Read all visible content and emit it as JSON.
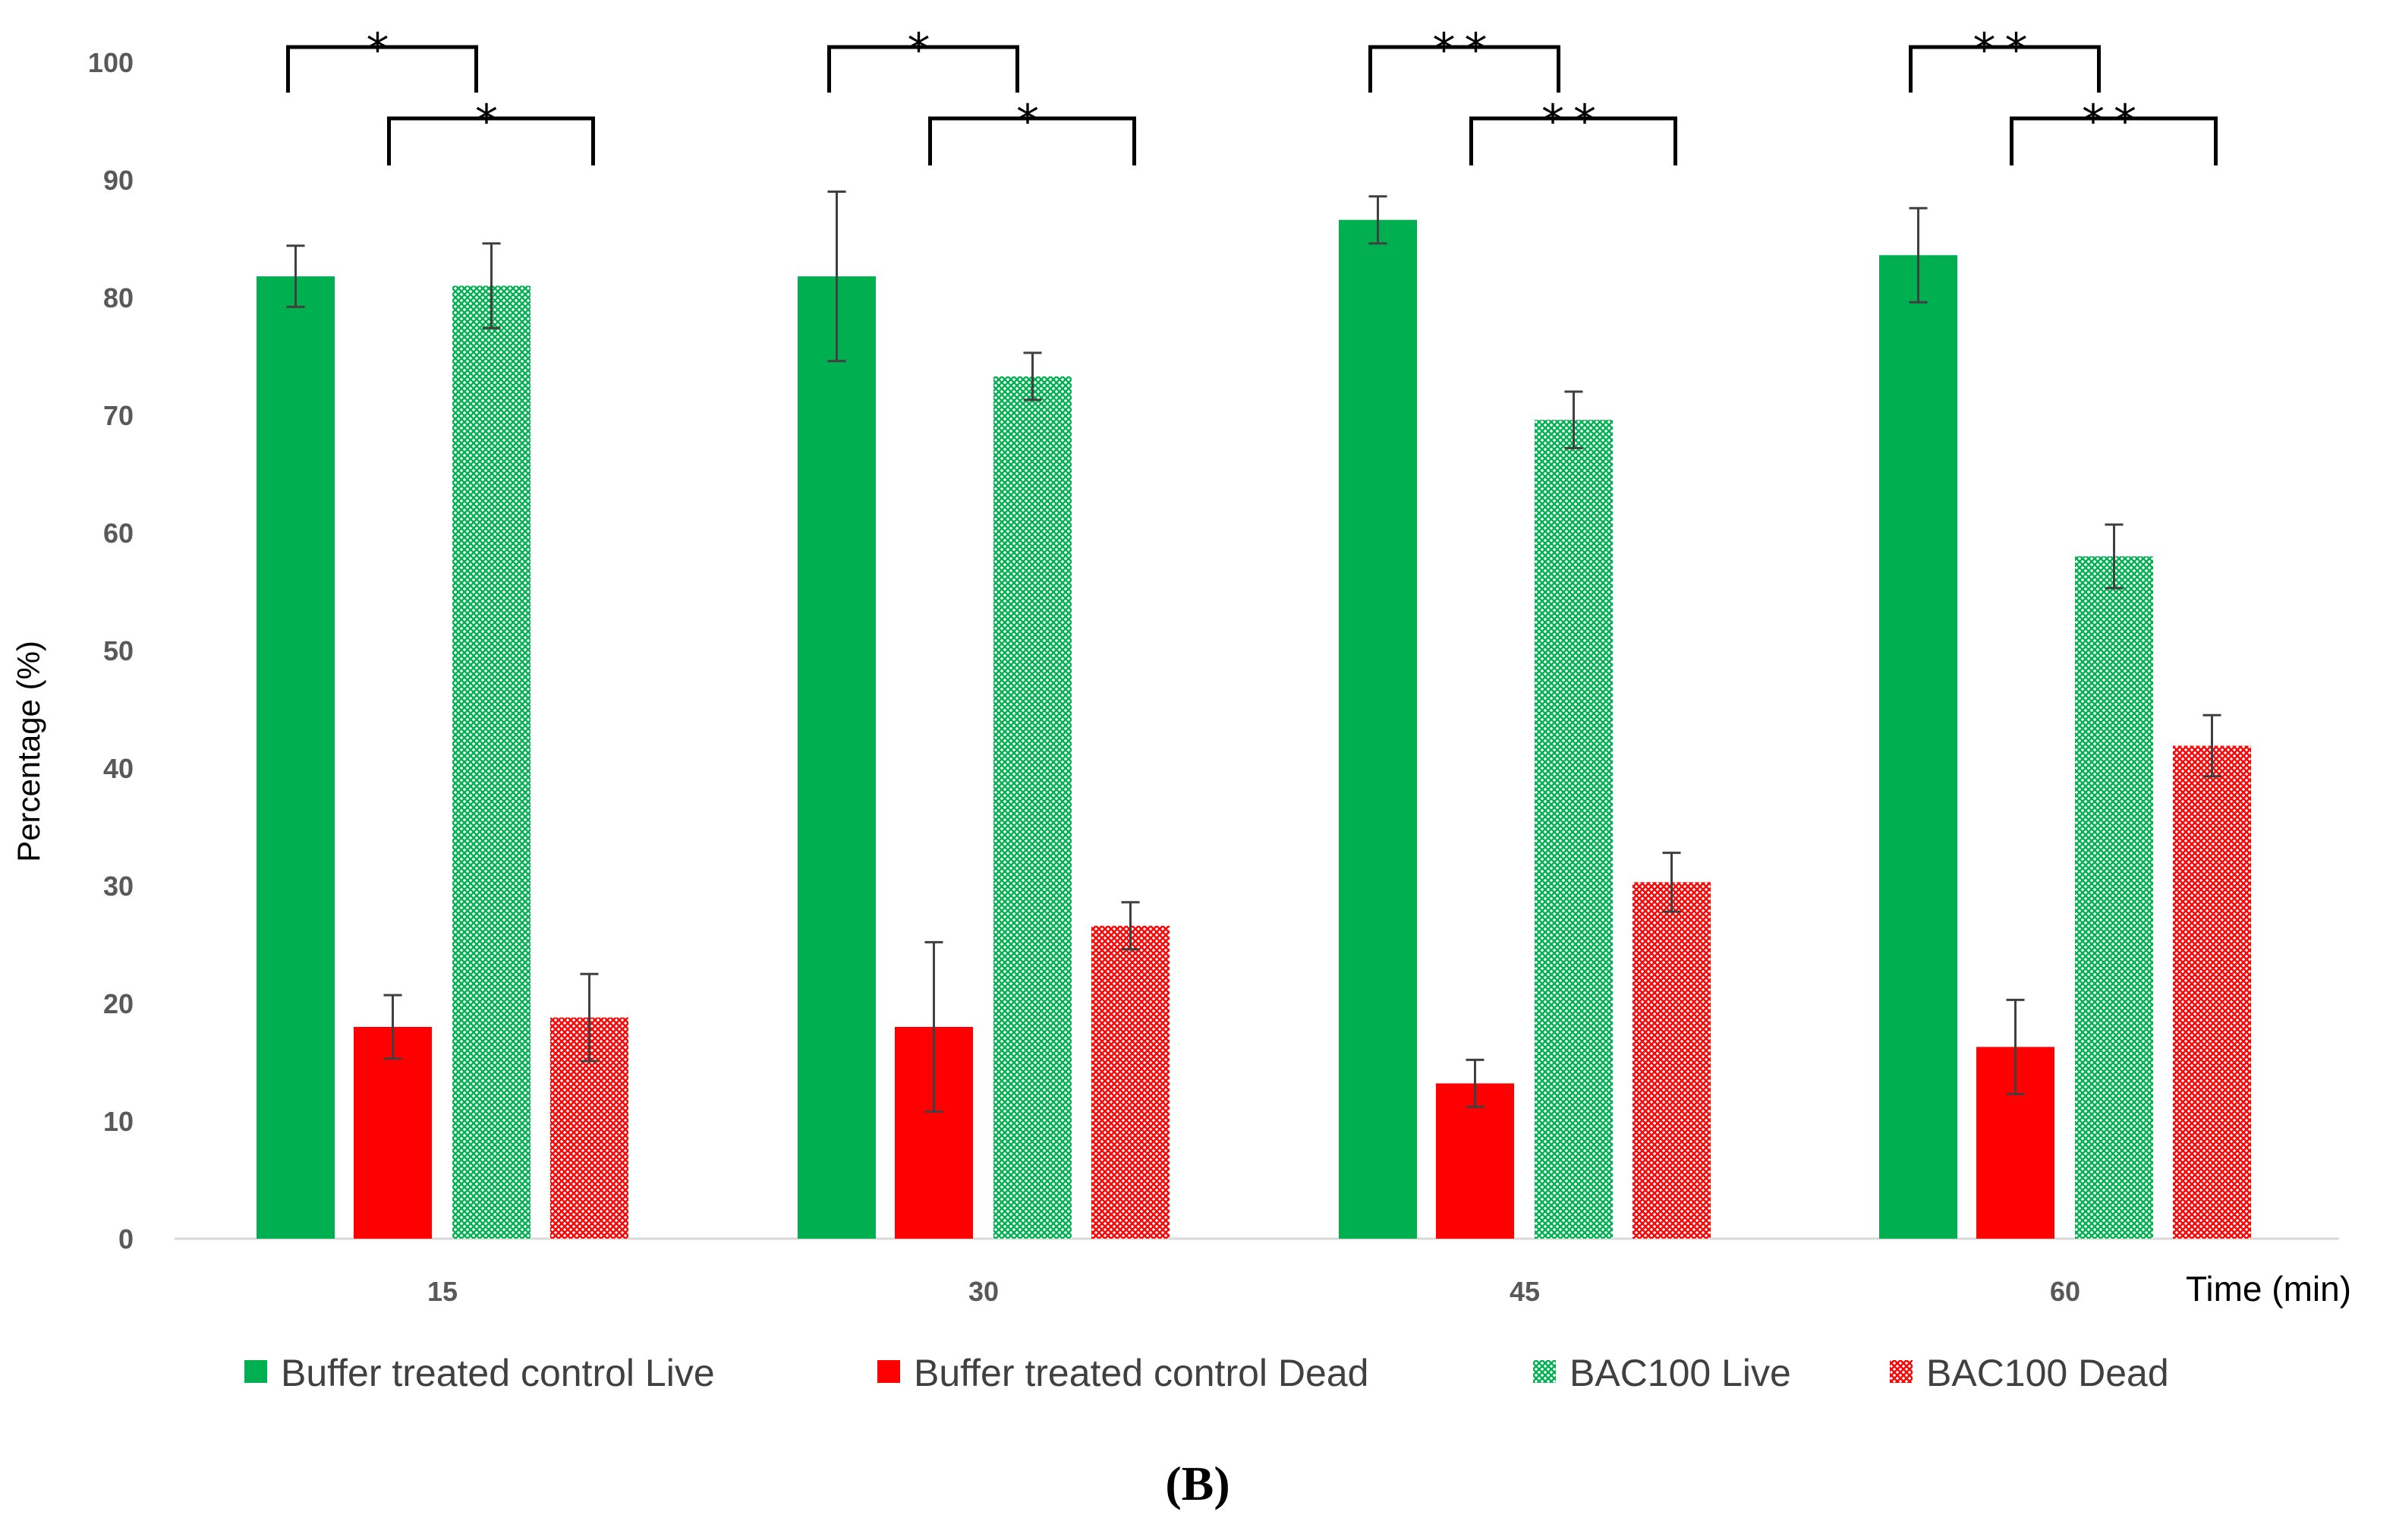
{
  "chart_data": {
    "type": "bar",
    "ylabel": "Percentage (%)",
    "xlabel": "Time (min)",
    "ylim": [
      0,
      100
    ],
    "yticks": [
      0,
      10,
      20,
      30,
      40,
      50,
      60,
      70,
      80,
      90,
      100
    ],
    "categories": [
      "15",
      "30",
      "45",
      "60"
    ],
    "series": [
      {
        "name": "Buffer treated control Live",
        "color": "#00b050",
        "pattern": "solid",
        "values": [
          81.8,
          81.8,
          86.6,
          83.6
        ],
        "errors": [
          2.6,
          7.2,
          2.0,
          4.0
        ]
      },
      {
        "name": "Buffer treated control Dead",
        "color": "#ff0000",
        "pattern": "solid",
        "values": [
          18.0,
          18.0,
          13.2,
          16.3
        ],
        "errors": [
          2.7,
          7.2,
          2.0,
          4.0
        ]
      },
      {
        "name": "BAC100 Live",
        "color": "#00b050",
        "pattern": "crosshatch",
        "values": [
          81.0,
          73.3,
          69.6,
          58.0
        ],
        "errors": [
          3.6,
          2.0,
          2.4,
          2.7
        ]
      },
      {
        "name": "BAC100 Dead",
        "color": "#ff0000",
        "pattern": "crosshatch",
        "values": [
          18.8,
          26.6,
          30.3,
          41.9
        ],
        "errors": [
          3.7,
          2.0,
          2.5,
          2.6
        ]
      }
    ],
    "significance": [
      {
        "category": "15",
        "upper": "*",
        "lower": "*"
      },
      {
        "category": "30",
        "upper": "*",
        "lower": "*"
      },
      {
        "category": "45",
        "upper": "**",
        "lower": "**"
      },
      {
        "category": "60",
        "upper": "**",
        "lower": "**"
      }
    ],
    "legend_position": "bottom",
    "panel_label": "(B)"
  }
}
